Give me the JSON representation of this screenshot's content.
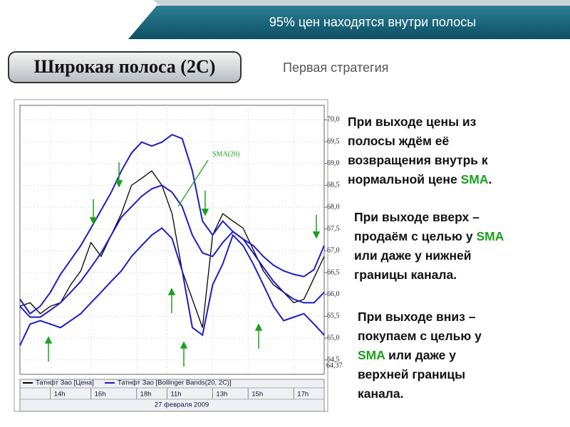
{
  "header": "95% цен находятся внутри полосы",
  "title": "Широкая полоса (2С)",
  "subtitle": "Первая стратегия",
  "paragraphs": [
    [
      [
        {
          "text": "При выходе цены из",
          "highlight": false
        }
      ],
      [
        {
          "text": "полосы ждём её",
          "highlight": false
        }
      ],
      [
        {
          "text": "возвращения внутрь к",
          "highlight": false
        }
      ],
      [
        {
          "text": "нормальной цене ",
          "highlight": false
        },
        {
          "text": "SMA",
          "highlight": true
        },
        {
          "text": ".",
          "highlight": false
        }
      ]
    ],
    [
      [
        {
          "text": "При выходе вверх –",
          "highlight": false
        }
      ],
      [
        {
          "text": "продаём с целью у ",
          "highlight": false
        },
        {
          "text": "SMA",
          "highlight": true
        }
      ],
      [
        {
          "text": "или даже у нижней",
          "highlight": false
        }
      ],
      [
        {
          "text": "границы канала.",
          "highlight": false
        }
      ]
    ],
    [
      [
        {
          "text": "При выходе вниз –",
          "highlight": false
        }
      ],
      [
        {
          "text": "покупаем с целью у",
          "highlight": false
        }
      ],
      [
        {
          "text": "SMA",
          "highlight": true
        },
        {
          "text": " или даже у",
          "highlight": false
        }
      ],
      [
        {
          "text": "верхней границы",
          "highlight": false
        }
      ],
      [
        {
          "text": "канала.",
          "highlight": false
        }
      ]
    ]
  ],
  "highlight_color": "#1aa01a",
  "chart_data": {
    "type": "line",
    "annotation": "SMA(20)",
    "price_label": "64,37",
    "date_label": "27 февраля 2009",
    "x": [
      0,
      2,
      4,
      6,
      8,
      10,
      12,
      14,
      16,
      18,
      20,
      22,
      24,
      26,
      28,
      30,
      32,
      34,
      36,
      38,
      40,
      42,
      44,
      46,
      48,
      50,
      52,
      54,
      56,
      58,
      60
    ],
    "xlim": [
      0,
      60
    ],
    "xticks": [
      {
        "value": 6,
        "label": "14h"
      },
      {
        "value": 14,
        "label": "16h"
      },
      {
        "value": 23,
        "label": "18h"
      },
      {
        "value": 29,
        "label": "11h"
      },
      {
        "value": 38,
        "label": "13h"
      },
      {
        "value": 45,
        "label": "15h"
      },
      {
        "value": 54,
        "label": "17h"
      }
    ],
    "ylim": [
      64.3,
      70.3
    ],
    "yticks": [
      {
        "value": 64.5,
        "label": "64,5"
      },
      {
        "value": 65,
        "label": "65,0"
      },
      {
        "value": 65.5,
        "label": "65,5"
      },
      {
        "value": 66,
        "label": "66,0"
      },
      {
        "value": 66.5,
        "label": "66,5"
      },
      {
        "value": 67,
        "label": "67,0"
      },
      {
        "value": 67.5,
        "label": "67,5"
      },
      {
        "value": 68,
        "label": "68,0"
      },
      {
        "value": 68.5,
        "label": "68,5"
      },
      {
        "value": 69,
        "label": "69,0"
      },
      {
        "value": 69.5,
        "label": "69,5"
      },
      {
        "value": 70,
        "label": "70,0"
      }
    ],
    "grid": true,
    "series": [
      {
        "name": "Татнфт Зао [Цена]",
        "color": "#000000",
        "values": [
          65.73,
          65.81,
          65.56,
          65.73,
          65.81,
          66.22,
          66.54,
          67.19,
          66.87,
          67.36,
          67.85,
          68.5,
          68.66,
          68.83,
          68.5,
          67.85,
          66.54,
          65.89,
          65.24,
          67.36,
          67.85,
          67.68,
          67.52,
          67.03,
          66.54,
          66.22,
          66.05,
          65.81,
          65.89,
          66.38,
          66.87
        ]
      },
      {
        "name": "Татнфт Зао [Bollinger Bands(20, 2C)]",
        "color": "#1c1cc8",
        "upper": [
          65.89,
          65.56,
          65.73,
          66.05,
          66.46,
          66.79,
          67.12,
          67.52,
          67.93,
          68.34,
          68.83,
          69.24,
          69.49,
          69.4,
          69.49,
          69.66,
          69.57,
          68.83,
          67.68,
          67.36,
          67.68,
          67.44,
          67.27,
          67.12,
          66.87,
          66.67,
          66.54,
          66.46,
          66.41,
          66.57,
          67.12
        ],
        "middle": [
          65.73,
          65.48,
          65.48,
          65.64,
          65.81,
          66.05,
          66.3,
          66.62,
          66.95,
          67.36,
          67.77,
          68.01,
          68.25,
          68.42,
          68.5,
          68.34,
          68.01,
          67.36,
          66.95,
          66.87,
          67.19,
          67.44,
          67.27,
          66.95,
          66.62,
          66.3,
          66.05,
          65.89,
          65.81,
          65.81,
          66.05
        ],
        "lower": [
          64.83,
          65.32,
          65.4,
          65.32,
          65.24,
          65.4,
          65.56,
          65.81,
          66.05,
          66.3,
          66.54,
          66.87,
          67.12,
          67.36,
          67.52,
          67.28,
          66.54,
          65.24,
          65.07,
          66.22,
          66.7,
          67.36,
          67.12,
          66.7,
          66.22,
          65.73,
          65.4,
          65.48,
          65.56,
          65.32,
          65.07
        ]
      }
    ]
  }
}
